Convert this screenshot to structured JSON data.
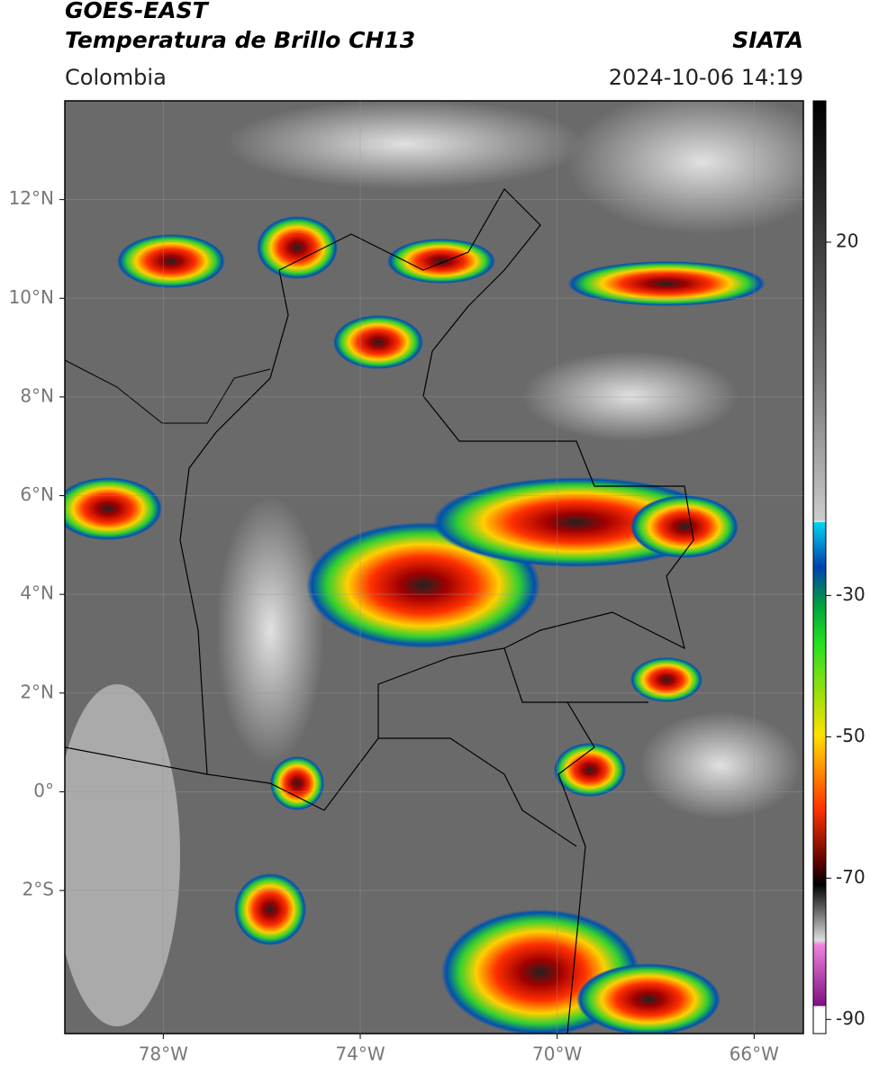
{
  "header": {
    "title": "GOES-EAST",
    "subtitle": "Temperatura de Brillo CH13",
    "region": "Colombia",
    "source": "SIATA",
    "timestamp": "2024-10-06 14:19"
  },
  "map": {
    "lon_range": [
      -80,
      -65
    ],
    "lat_range": [
      14,
      -4.9
    ],
    "lon_ticks": [
      {
        "value": -78,
        "label": "78°W"
      },
      {
        "value": -74,
        "label": "74°W"
      },
      {
        "value": -70,
        "label": "70°W"
      },
      {
        "value": -66,
        "label": "66°W"
      }
    ],
    "lat_ticks": [
      {
        "value": 12,
        "label": "12°N"
      },
      {
        "value": 10,
        "label": "10°N"
      },
      {
        "value": 8,
        "label": "8°N"
      },
      {
        "value": 6,
        "label": "6°N"
      },
      {
        "value": 4,
        "label": "4°N"
      },
      {
        "value": 2,
        "label": "2°N"
      },
      {
        "value": 0,
        "label": "0°"
      },
      {
        "value": -2,
        "label": "2°S"
      }
    ],
    "colorbar": {
      "range": [
        40,
        -92
      ],
      "ticks": [
        20,
        -30,
        -50,
        -70,
        -90
      ]
    }
  }
}
